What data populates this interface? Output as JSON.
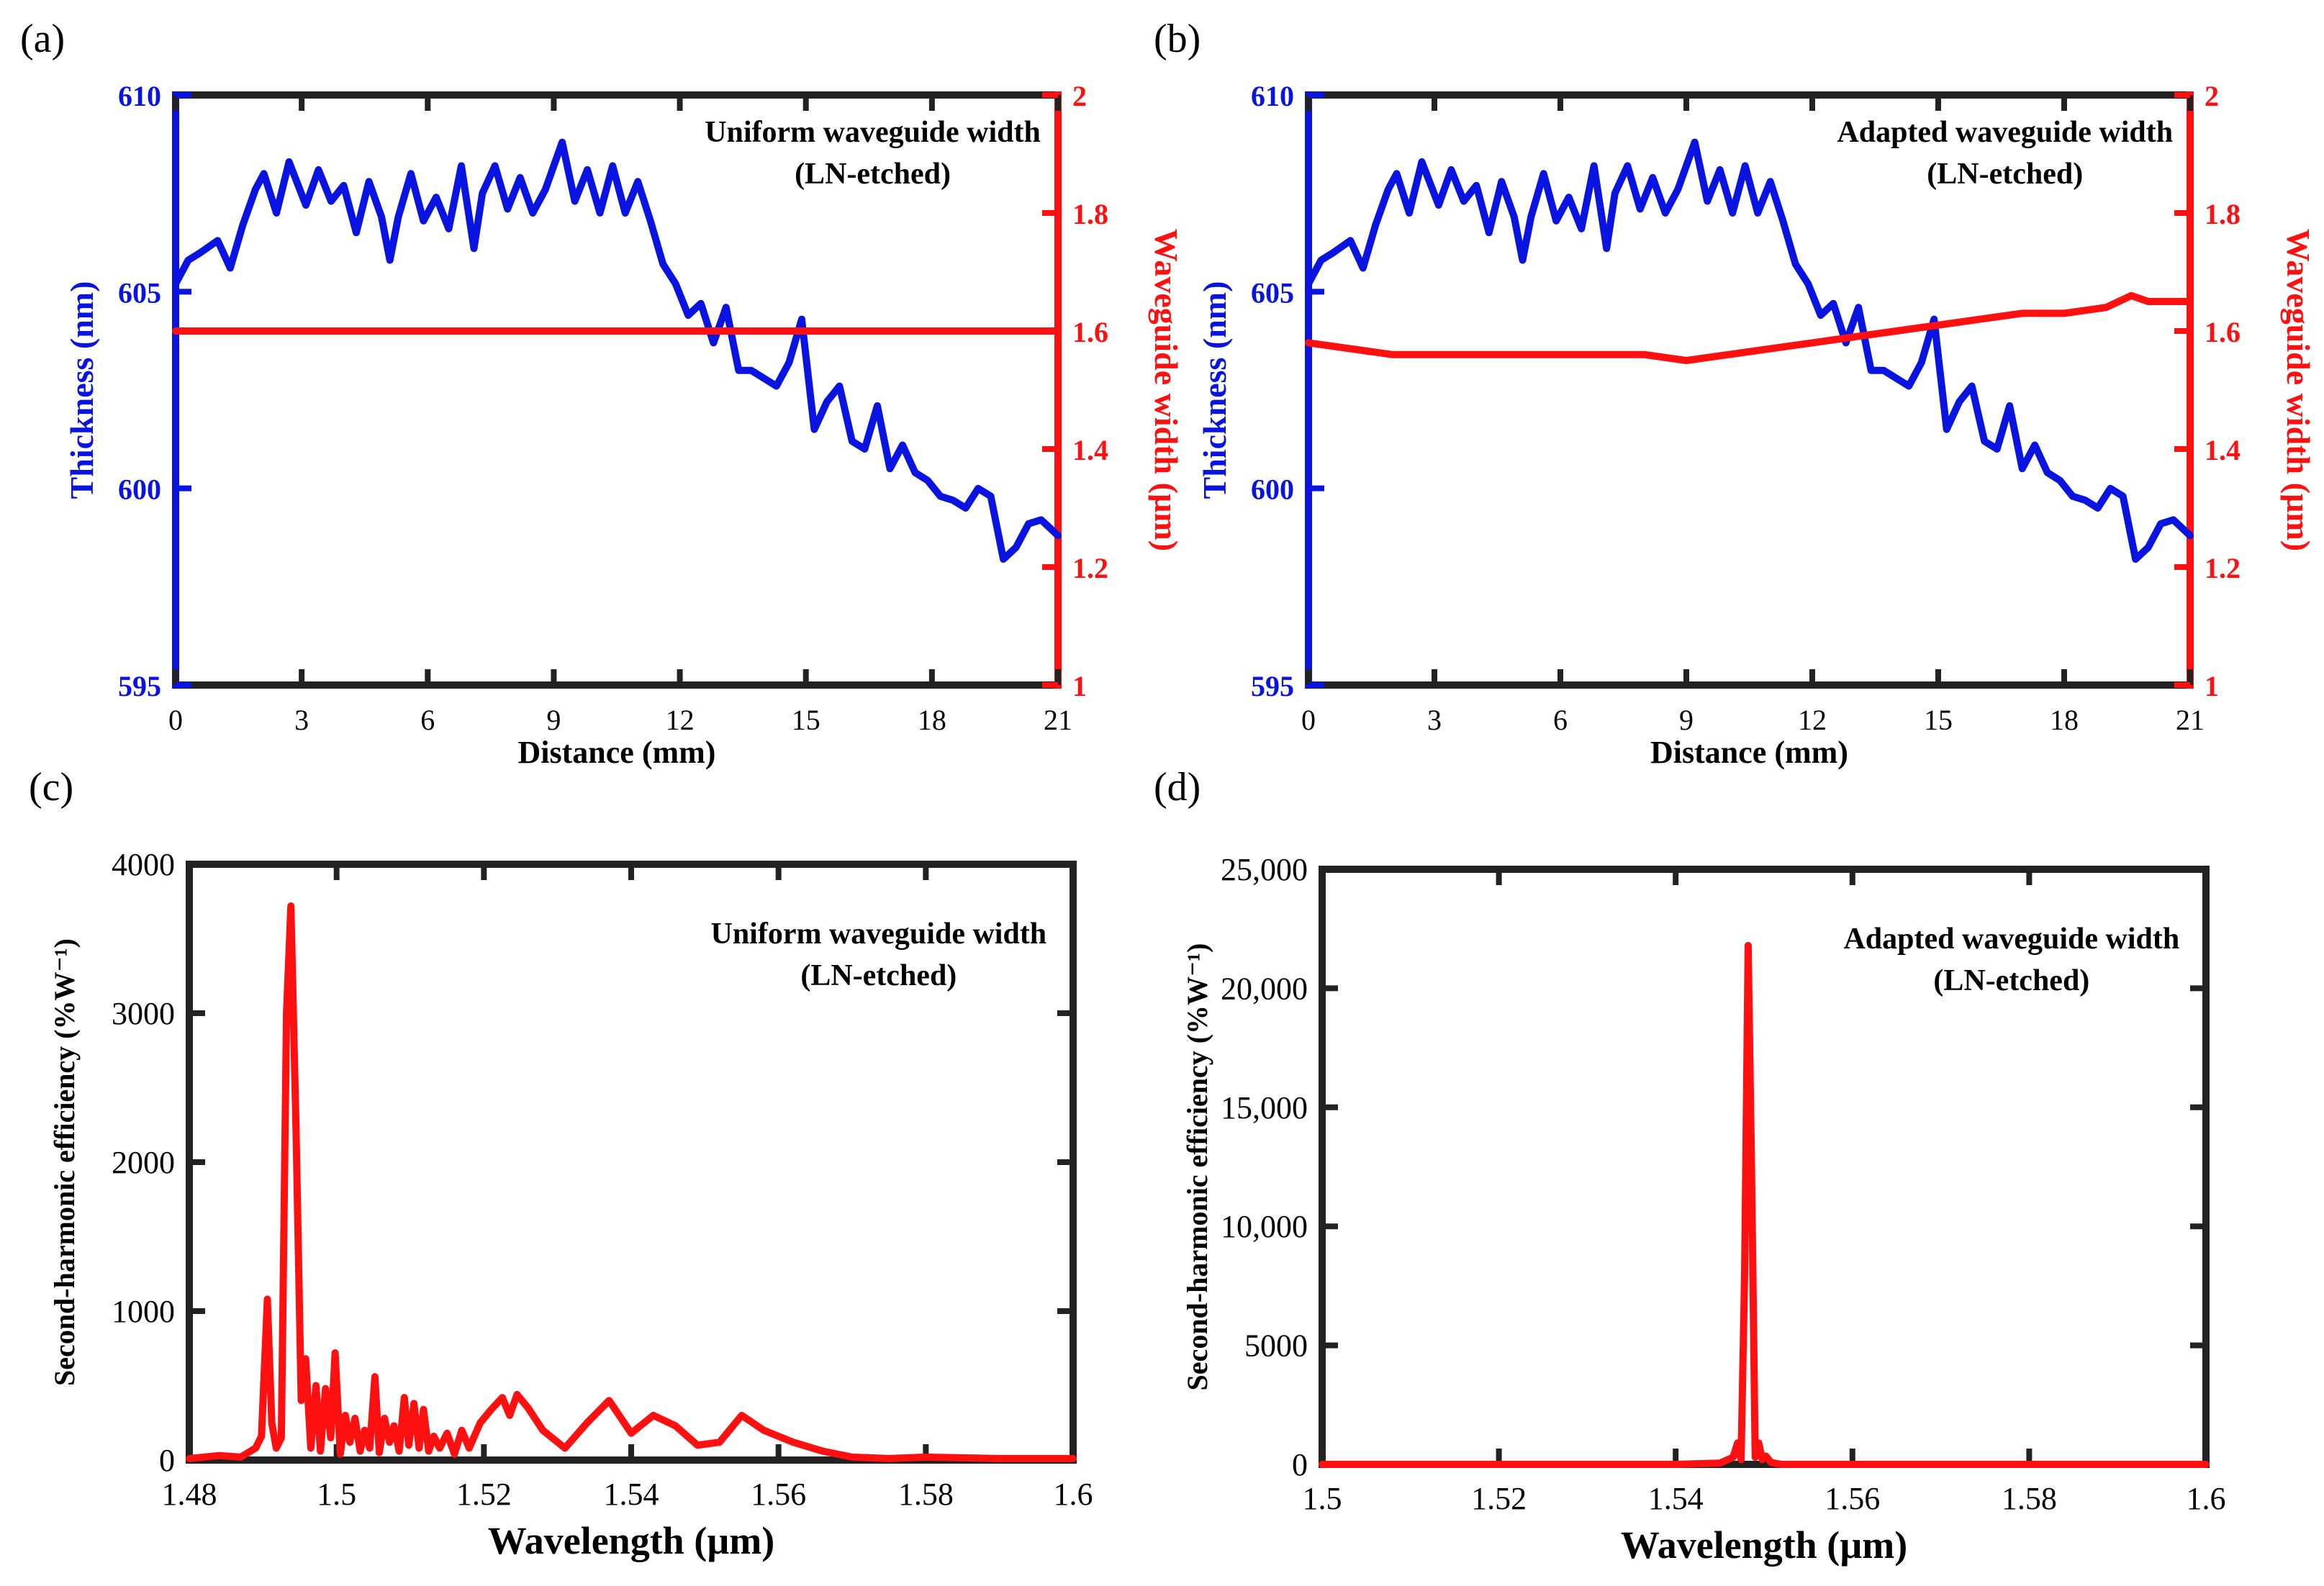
{
  "colors": {
    "thickness": "#0a14e0",
    "width": "#ff1010",
    "axis": "#222222",
    "text": "#000000"
  },
  "chart_data": [
    {
      "panel": "(a)",
      "type": "line",
      "annotation": [
        "Uniform waveguide width",
        "(LN-etched)"
      ],
      "xlabel": "Distance (mm)",
      "ylabel_left": "Thickness (nm)",
      "ylabel_right": "Waveguide width (µm)",
      "xlim": [
        0,
        21
      ],
      "ylim_left": [
        595,
        610
      ],
      "ylim_right": [
        1,
        2
      ],
      "xticks": [
        "0",
        "3",
        "6",
        "9",
        "12",
        "15",
        "18",
        "21"
      ],
      "yticks_left": [
        "595",
        "600",
        "605",
        "610"
      ],
      "yticks_right": [
        "1",
        "1.2",
        "1.4",
        "1.6",
        "1.8",
        "2"
      ],
      "series": [
        {
          "name": "Thickness (nm)",
          "axis": "left",
          "x": [
            0,
            0.3,
            0.6,
            1,
            1.3,
            1.6,
            1.9,
            2.1,
            2.4,
            2.7,
            3.1,
            3.4,
            3.7,
            4,
            4.3,
            4.6,
            4.9,
            5.1,
            5.3,
            5.6,
            5.9,
            6.2,
            6.5,
            6.8,
            7.1,
            7.3,
            7.6,
            7.9,
            8.2,
            8.5,
            8.8,
            9.2,
            9.5,
            9.8,
            10.1,
            10.4,
            10.7,
            11,
            11.3,
            11.6,
            11.9,
            12.2,
            12.5,
            12.8,
            13.1,
            13.4,
            13.7,
            14,
            14.3,
            14.6,
            14.9,
            15.2,
            15.5,
            15.8,
            16.1,
            16.4,
            16.7,
            17,
            17.3,
            17.6,
            17.9,
            18.2,
            18.5,
            18.8,
            19.1,
            19.4,
            19.7,
            20,
            20.3,
            20.6,
            20.8,
            21
          ],
          "y": [
            605.2,
            605.8,
            606,
            606.3,
            605.6,
            606.7,
            607.6,
            608,
            607,
            608.3,
            607.2,
            608.1,
            607.3,
            607.7,
            606.5,
            607.8,
            606.9,
            605.8,
            606.9,
            608,
            606.8,
            607.4,
            606.6,
            608.2,
            606.1,
            607.5,
            608.2,
            607.1,
            607.9,
            607,
            607.6,
            608.8,
            607.3,
            608.1,
            607,
            608.2,
            607,
            607.8,
            606.8,
            605.7,
            605.2,
            604.4,
            604.7,
            603.7,
            604.6,
            603,
            603,
            602.8,
            602.6,
            603.2,
            604.3,
            601.5,
            602.2,
            602.6,
            601.2,
            601,
            602.1,
            600.5,
            601.1,
            600.4,
            600.2,
            599.8,
            599.7,
            599.5,
            600,
            599.8,
            598.2,
            598.5,
            599.1,
            599.2,
            599,
            598.8
          ]
        },
        {
          "name": "Waveguide width (µm)",
          "axis": "right",
          "x": [
            0,
            21
          ],
          "y": [
            1.6,
            1.6
          ]
        }
      ]
    },
    {
      "panel": "(b)",
      "type": "line",
      "annotation": [
        "Adapted waveguide width",
        "(LN-etched)"
      ],
      "xlabel": "Distance (mm)",
      "ylabel_left": "Thickness (nm)",
      "ylabel_right": "Waveguide width (µm)",
      "xlim": [
        0,
        21
      ],
      "ylim_left": [
        595,
        610
      ],
      "ylim_right": [
        1,
        2
      ],
      "xticks": [
        "0",
        "3",
        "6",
        "9",
        "12",
        "15",
        "18",
        "21"
      ],
      "yticks_left": [
        "595",
        "600",
        "605",
        "610"
      ],
      "yticks_right": [
        "1",
        "1.2",
        "1.4",
        "1.6",
        "1.8",
        "2"
      ],
      "series": [
        {
          "name": "Thickness (nm)",
          "axis": "left",
          "x": [
            0,
            0.3,
            0.6,
            1,
            1.3,
            1.6,
            1.9,
            2.1,
            2.4,
            2.7,
            3.1,
            3.4,
            3.7,
            4,
            4.3,
            4.6,
            4.9,
            5.1,
            5.3,
            5.6,
            5.9,
            6.2,
            6.5,
            6.8,
            7.1,
            7.3,
            7.6,
            7.9,
            8.2,
            8.5,
            8.8,
            9.2,
            9.5,
            9.8,
            10.1,
            10.4,
            10.7,
            11,
            11.3,
            11.6,
            11.9,
            12.2,
            12.5,
            12.8,
            13.1,
            13.4,
            13.7,
            14,
            14.3,
            14.6,
            14.9,
            15.2,
            15.5,
            15.8,
            16.1,
            16.4,
            16.7,
            17,
            17.3,
            17.6,
            17.9,
            18.2,
            18.5,
            18.8,
            19.1,
            19.4,
            19.7,
            20,
            20.3,
            20.6,
            20.8,
            21
          ],
          "y": [
            605.2,
            605.8,
            606,
            606.3,
            605.6,
            606.7,
            607.6,
            608,
            607,
            608.3,
            607.2,
            608.1,
            607.3,
            607.7,
            606.5,
            607.8,
            606.9,
            605.8,
            606.9,
            608,
            606.8,
            607.4,
            606.6,
            608.2,
            606.1,
            607.5,
            608.2,
            607.1,
            607.9,
            607,
            607.6,
            608.8,
            607.3,
            608.1,
            607,
            608.2,
            607,
            607.8,
            606.8,
            605.7,
            605.2,
            604.4,
            604.7,
            603.7,
            604.6,
            603,
            603,
            602.8,
            602.6,
            603.2,
            604.3,
            601.5,
            602.2,
            602.6,
            601.2,
            601,
            602.1,
            600.5,
            601.1,
            600.4,
            600.2,
            599.8,
            599.7,
            599.5,
            600,
            599.8,
            598.2,
            598.5,
            599.1,
            599.2,
            599,
            598.8
          ]
        },
        {
          "name": "Waveguide width (µm)",
          "axis": "right",
          "x": [
            0,
            1,
            2,
            3,
            4,
            5,
            6,
            7,
            8,
            9,
            10,
            11,
            12,
            13,
            14,
            15,
            16,
            17,
            18,
            19,
            19.6,
            20,
            21
          ],
          "y": [
            1.58,
            1.57,
            1.56,
            1.56,
            1.56,
            1.56,
            1.56,
            1.56,
            1.56,
            1.55,
            1.56,
            1.57,
            1.58,
            1.59,
            1.6,
            1.61,
            1.62,
            1.63,
            1.63,
            1.64,
            1.66,
            1.65,
            1.65
          ]
        }
      ]
    },
    {
      "panel": "(c)",
      "type": "line",
      "annotation": [
        "Uniform waveguide width",
        "(LN-etched)"
      ],
      "xlabel": "Wavelength (µm)",
      "ylabel": "Second-harmonic efficiency (%W⁻¹)",
      "xlim": [
        1.48,
        1.6
      ],
      "ylim": [
        0,
        4000
      ],
      "xticks": [
        "1.48",
        "1.5",
        "1.52",
        "1.54",
        "1.56",
        "1.58",
        "1.6"
      ],
      "yticks": [
        "0",
        "1000",
        "2000",
        "3000",
        "4000"
      ],
      "series": [
        {
          "name": "SH efficiency",
          "x": [
            1.48,
            1.484,
            1.487,
            1.489,
            1.4898,
            1.4906,
            1.4912,
            1.4918,
            1.4925,
            1.4932,
            1.4938,
            1.4945,
            1.4952,
            1.4958,
            1.4965,
            1.4972,
            1.4978,
            1.4985,
            1.4992,
            1.4998,
            1.5005,
            1.5012,
            1.5018,
            1.5025,
            1.5032,
            1.5038,
            1.5045,
            1.5052,
            1.5058,
            1.5065,
            1.5072,
            1.5078,
            1.5085,
            1.5092,
            1.5098,
            1.5105,
            1.5112,
            1.5118,
            1.5125,
            1.5132,
            1.514,
            1.515,
            1.516,
            1.517,
            1.518,
            1.5195,
            1.521,
            1.5225,
            1.5235,
            1.5245,
            1.526,
            1.528,
            1.531,
            1.534,
            1.537,
            1.54,
            1.543,
            1.546,
            1.549,
            1.552,
            1.555,
            1.558,
            1.562,
            1.566,
            1.57,
            1.575,
            1.58,
            1.59,
            1.6
          ],
          "y": [
            10,
            30,
            20,
            80,
            160,
            1080,
            250,
            80,
            150,
            3000,
            3720,
            2200,
            400,
            680,
            80,
            500,
            60,
            480,
            150,
            720,
            40,
            300,
            120,
            280,
            60,
            200,
            80,
            560,
            50,
            280,
            120,
            230,
            60,
            420,
            100,
            380,
            80,
            340,
            60,
            160,
            80,
            180,
            40,
            200,
            80,
            250,
            340,
            420,
            300,
            440,
            350,
            200,
            80,
            250,
            400,
            180,
            300,
            230,
            100,
            120,
            300,
            200,
            120,
            60,
            20,
            10,
            20,
            10,
            10
          ]
        }
      ]
    },
    {
      "panel": "(d)",
      "type": "line",
      "annotation": [
        "Adapted waveguide width",
        "(LN-etched)"
      ],
      "xlabel": "Wavelength (µm)",
      "ylabel": "Second-harmonic efficiency (%W⁻¹)",
      "xlim": [
        1.5,
        1.6
      ],
      "ylim": [
        0,
        25000
      ],
      "xticks": [
        "1.5",
        "1.52",
        "1.54",
        "1.56",
        "1.58",
        "1.6"
      ],
      "yticks": [
        "0",
        "5000",
        "10,000",
        "15,000",
        "20,000",
        "25,000"
      ],
      "series": [
        {
          "name": "SH efficiency",
          "x": [
            1.5,
            1.54,
            1.545,
            1.5465,
            1.547,
            1.5474,
            1.5478,
            1.5482,
            1.5486,
            1.549,
            1.5494,
            1.5498,
            1.5502,
            1.5508,
            1.552,
            1.56,
            1.6
          ],
          "y": [
            0,
            0,
            50,
            300,
            900,
            200,
            8000,
            21800,
            12000,
            300,
            900,
            200,
            350,
            80,
            0,
            0,
            0
          ]
        }
      ]
    }
  ]
}
